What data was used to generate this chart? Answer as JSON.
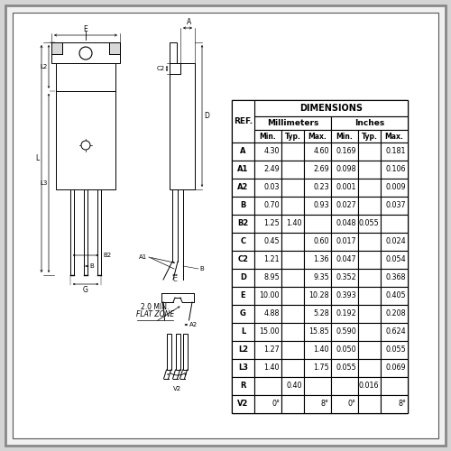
{
  "bg_color": "#d4d4d4",
  "inner_bg": "#f0f0f0",
  "border_color": "#444444",
  "table_data": {
    "rows": [
      [
        "A",
        "4.30",
        "",
        "4.60",
        "0.169",
        "",
        "0.181"
      ],
      [
        "A1",
        "2.49",
        "",
        "2.69",
        "0.098",
        "",
        "0.106"
      ],
      [
        "A2",
        "0.03",
        "",
        "0.23",
        "0.001",
        "",
        "0.009"
      ],
      [
        "B",
        "0.70",
        "",
        "0.93",
        "0.027",
        "",
        "0.037"
      ],
      [
        "B2",
        "1.25",
        "1.40",
        "",
        "0.048",
        "0.055",
        ""
      ],
      [
        "C",
        "0.45",
        "",
        "0.60",
        "0.017",
        "",
        "0.024"
      ],
      [
        "C2",
        "1.21",
        "",
        "1.36",
        "0.047",
        "",
        "0.054"
      ],
      [
        "D",
        "8.95",
        "",
        "9.35",
        "0.352",
        "",
        "0.368"
      ],
      [
        "E",
        "10.00",
        "",
        "10.28",
        "0.393",
        "",
        "0.405"
      ],
      [
        "G",
        "4.88",
        "",
        "5.28",
        "0.192",
        "",
        "0.208"
      ],
      [
        "L",
        "15.00",
        "",
        "15.85",
        "0.590",
        "",
        "0.624"
      ],
      [
        "L2",
        "1.27",
        "",
        "1.40",
        "0.050",
        "",
        "0.055"
      ],
      [
        "L3",
        "1.40",
        "",
        "1.75",
        "0.055",
        "",
        "0.069"
      ],
      [
        "R",
        "",
        "0.40",
        "",
        "",
        "0.016",
        ""
      ],
      [
        "V2",
        "0°",
        "",
        "8°",
        "0°",
        "",
        "8°"
      ]
    ]
  },
  "title": "DIMENSIONS",
  "mm_label": "Millimeters",
  "inch_label": "Inches"
}
